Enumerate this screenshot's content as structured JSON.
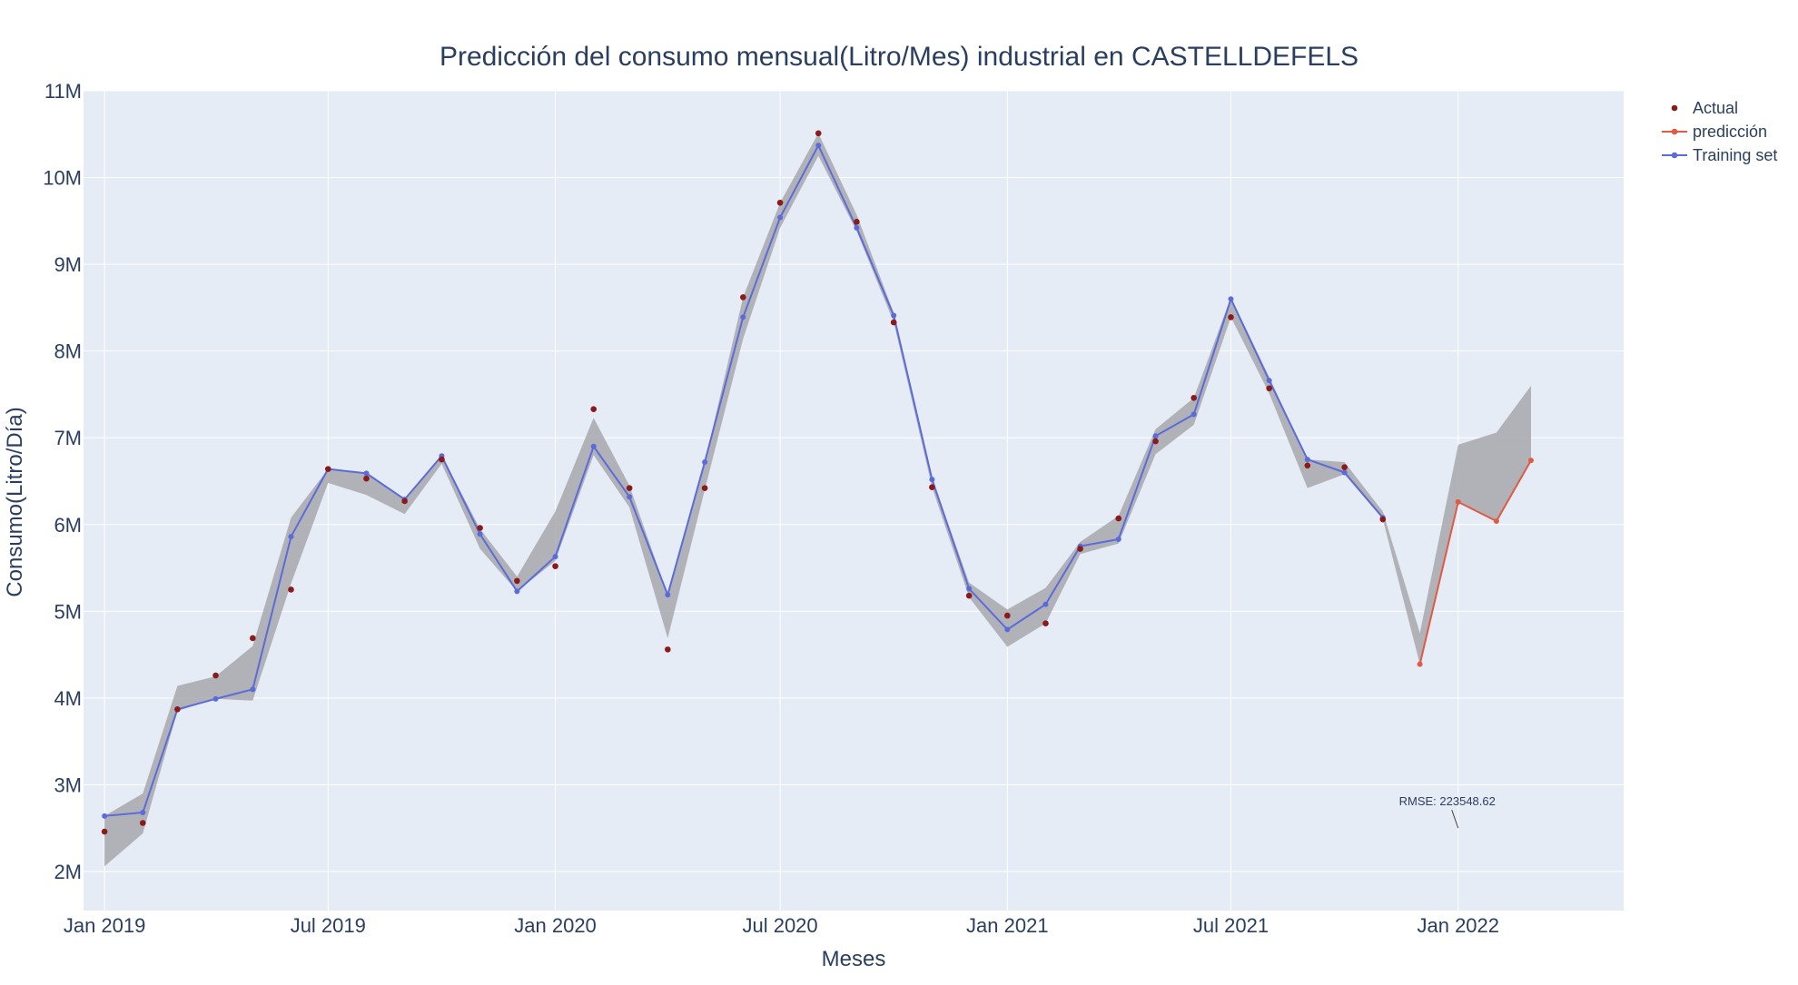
{
  "chart_data": {
    "type": "line",
    "title": "Predicción del consumo mensual(Litro/Mes) industrial en CASTELLDEFELS",
    "xlabel": "Meses",
    "ylabel": "Consumo(Litro/Día)",
    "x_tick_labels": [
      "Jan 2019",
      "Jul 2019",
      "Jan 2020",
      "Jul 2020",
      "Jan 2021",
      "Jul 2021",
      "Jan 2022"
    ],
    "y_tick_values": [
      2000000,
      3000000,
      4000000,
      5000000,
      6000000,
      7000000,
      8000000,
      9000000,
      10000000,
      11000000
    ],
    "y_tick_labels": [
      "2M",
      "3M",
      "4M",
      "5M",
      "6M",
      "7M",
      "8M",
      "9M",
      "10M",
      "11M"
    ],
    "xlim": [
      "2018-12-15",
      "2022-05-15"
    ],
    "ylim": [
      1550000,
      11000000
    ],
    "grid": true,
    "legend_position": "top-right",
    "annotation": "RMSE: 223548.62",
    "annotation_anchor": {
      "x": "2022-01-01",
      "y": 2500000
    },
    "colors": {
      "plot_bg": "#e5ecf6",
      "actual": "#8b1a1a",
      "prediction": "#e05a44",
      "training": "#5b6bd9",
      "band": "#a8a8ab"
    },
    "series": [
      {
        "name": "Actual",
        "mode": "markers",
        "x": [
          "2019-01-01",
          "2019-02-01",
          "2019-03-01",
          "2019-04-01",
          "2019-05-01",
          "2019-06-01",
          "2019-07-01",
          "2019-08-01",
          "2019-09-01",
          "2019-10-01",
          "2019-11-01",
          "2019-12-01",
          "2020-01-01",
          "2020-02-01",
          "2020-03-01",
          "2020-04-01",
          "2020-05-01",
          "2020-06-01",
          "2020-07-01",
          "2020-08-01",
          "2020-09-01",
          "2020-10-01",
          "2020-11-01",
          "2020-12-01",
          "2021-01-01",
          "2021-02-01",
          "2021-03-01",
          "2021-04-01",
          "2021-05-01",
          "2021-06-01",
          "2021-07-01",
          "2021-08-01",
          "2021-09-01",
          "2021-10-01",
          "2021-11-01"
        ],
        "y": [
          2460000,
          2560000,
          3870000,
          4260000,
          4690000,
          5250000,
          6640000,
          6530000,
          6270000,
          6750000,
          5960000,
          5350000,
          5520000,
          7330000,
          6420000,
          4560000,
          6420000,
          8620000,
          9710000,
          10510000,
          9490000,
          8330000,
          6430000,
          5180000,
          4950000,
          4860000,
          5720000,
          6070000,
          6960000,
          7460000,
          8390000,
          7570000,
          6680000,
          6660000,
          6060000
        ]
      },
      {
        "name": "predicción",
        "mode": "lines+markers",
        "x": [
          "2021-12-01",
          "2022-01-01",
          "2022-02-01",
          "2022-03-01"
        ],
        "y": [
          4390000,
          6260000,
          6040000,
          6740000
        ]
      },
      {
        "name": "Training set",
        "mode": "lines+markers",
        "x": [
          "2019-01-01",
          "2019-02-01",
          "2019-03-01",
          "2019-04-01",
          "2019-05-01",
          "2019-06-01",
          "2019-07-01",
          "2019-08-01",
          "2019-09-01",
          "2019-10-01",
          "2019-11-01",
          "2019-12-01",
          "2020-01-01",
          "2020-02-01",
          "2020-03-01",
          "2020-04-01",
          "2020-05-01",
          "2020-06-01",
          "2020-07-01",
          "2020-08-01",
          "2020-09-01",
          "2020-10-01",
          "2020-11-01",
          "2020-12-01",
          "2021-01-01",
          "2021-02-01",
          "2021-03-01",
          "2021-04-01",
          "2021-05-01",
          "2021-06-01",
          "2021-07-01",
          "2021-08-01",
          "2021-09-01",
          "2021-10-01",
          "2021-11-01"
        ],
        "y": [
          2640000,
          2680000,
          3870000,
          3990000,
          4100000,
          5860000,
          6640000,
          6590000,
          6290000,
          6790000,
          5890000,
          5230000,
          5630000,
          6900000,
          6320000,
          5190000,
          6720000,
          8390000,
          9540000,
          10370000,
          9420000,
          8410000,
          6520000,
          5260000,
          4790000,
          5080000,
          5750000,
          5830000,
          7020000,
          7270000,
          8600000,
          7660000,
          6750000,
          6600000,
          6080000
        ]
      }
    ],
    "confidence_band": {
      "x": [
        "2019-01-01",
        "2019-02-01",
        "2019-03-01",
        "2019-04-01",
        "2019-05-01",
        "2019-06-01",
        "2019-07-01",
        "2019-08-01",
        "2019-09-01",
        "2019-10-01",
        "2019-11-01",
        "2019-12-01",
        "2020-01-01",
        "2020-02-01",
        "2020-03-01",
        "2020-04-01",
        "2020-05-01",
        "2020-06-01",
        "2020-07-01",
        "2020-08-01",
        "2020-09-01",
        "2020-10-01",
        "2020-11-01",
        "2020-12-01",
        "2021-01-01",
        "2021-02-01",
        "2021-03-01",
        "2021-04-01",
        "2021-05-01",
        "2021-06-01",
        "2021-07-01",
        "2021-08-01",
        "2021-09-01",
        "2021-10-01",
        "2021-11-01",
        "2021-12-01",
        "2022-01-01",
        "2022-02-01",
        "2022-03-01"
      ],
      "upper": [
        2640000,
        2900000,
        4140000,
        4250000,
        4600000,
        6080000,
        6640000,
        6590000,
        6300000,
        6800000,
        5950000,
        5400000,
        6150000,
        7230000,
        6450000,
        5190000,
        6720000,
        8620000,
        9710000,
        10510000,
        9570000,
        8440000,
        6540000,
        5330000,
        5020000,
        5270000,
        5800000,
        6100000,
        7100000,
        7460000,
        8620000,
        7700000,
        6750000,
        6720000,
        6150000,
        4750000,
        6920000,
        7060000,
        7600000
      ],
      "lower": [
        2060000,
        2440000,
        3850000,
        3990000,
        3970000,
        5320000,
        6480000,
        6340000,
        6120000,
        6700000,
        5720000,
        5230000,
        5580000,
        6800000,
        6200000,
        4690000,
        6400000,
        8140000,
        9420000,
        10250000,
        9380000,
        8330000,
        6430000,
        5160000,
        4590000,
        4860000,
        5660000,
        5780000,
        6810000,
        7150000,
        8390000,
        7510000,
        6420000,
        6580000,
        6060000,
        4390000,
        6260000,
        6040000,
        6740000
      ]
    }
  }
}
